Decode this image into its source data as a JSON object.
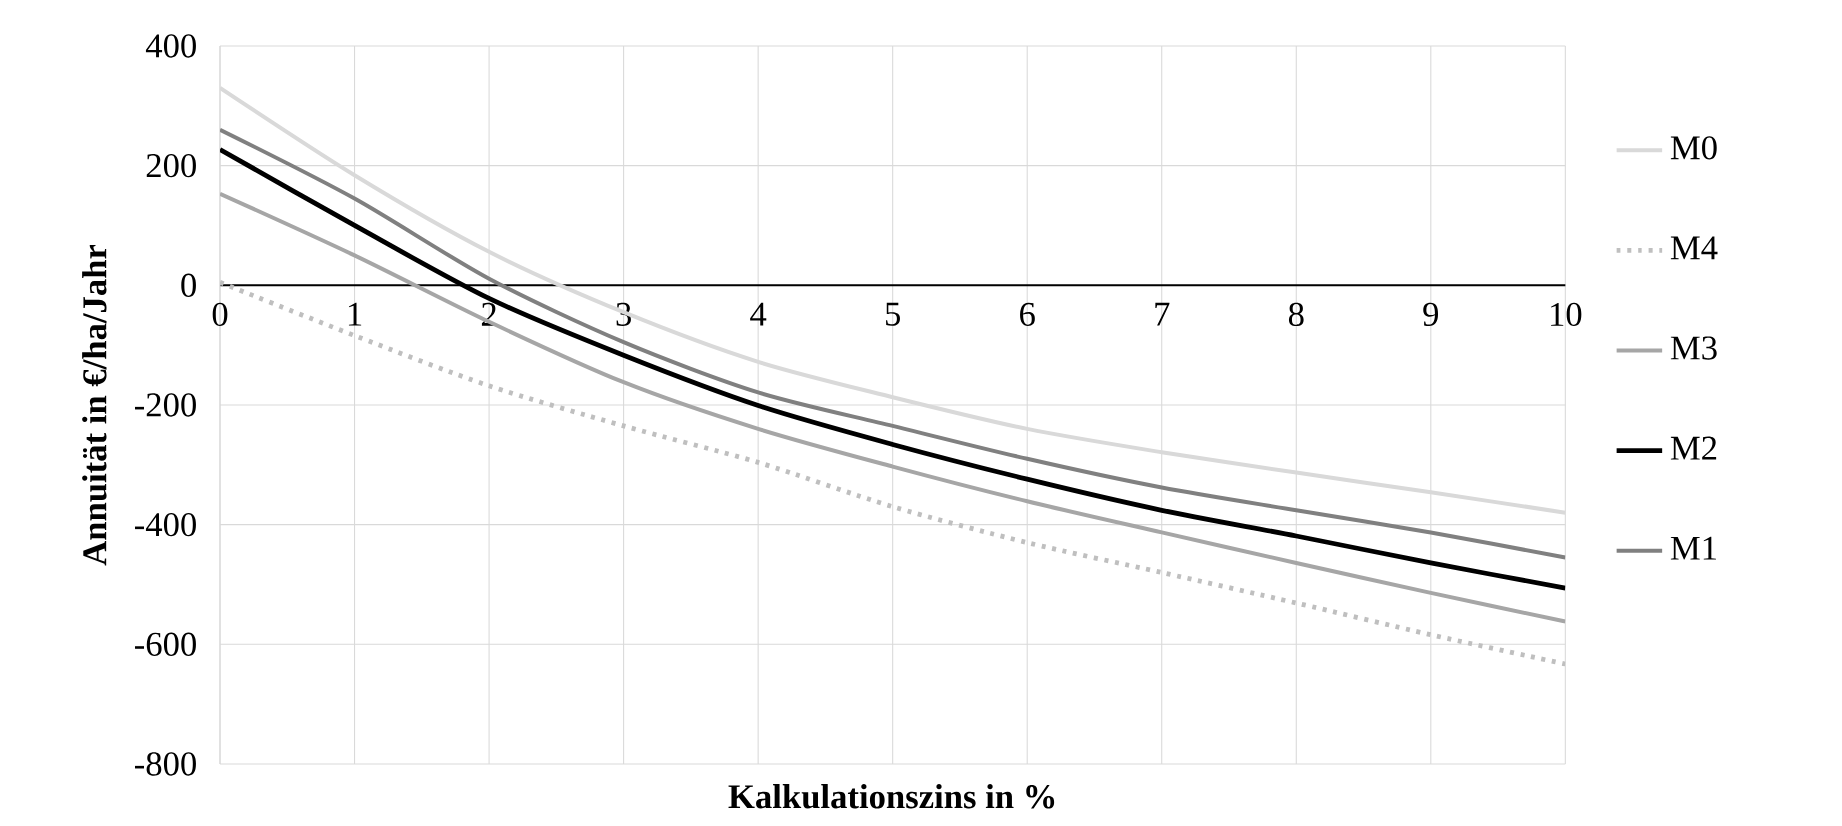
{
  "chart_data": {
    "type": "line",
    "xlabel": "Kalkulationszins in %",
    "ylabel": "Annuität in €/ha/Jahr",
    "x": [
      0,
      1,
      2,
      3,
      4,
      5,
      6,
      7,
      8,
      9,
      10
    ],
    "xlim": [
      0,
      10
    ],
    "ylim": [
      -800,
      400
    ],
    "xticks": [
      0,
      1,
      2,
      3,
      4,
      5,
      6,
      7,
      8,
      9,
      10
    ],
    "yticks": [
      -800,
      -600,
      -400,
      -200,
      0,
      200,
      400
    ],
    "grid": true,
    "legend": "right",
    "marker": "none",
    "series": [
      {
        "name": "M0",
        "color": "#d9d9d9",
        "line_style": "solid",
        "values": [
          330,
          184,
          56,
          -45,
          -128,
          -187,
          -240,
          -279,
          -313,
          -346,
          -380
        ]
      },
      {
        "name": "M4",
        "color": "#bfbfbf",
        "line_style": "dotted",
        "values": [
          5,
          -84,
          -168,
          -235,
          -296,
          -370,
          -430,
          -480,
          -531,
          -584,
          -633
        ]
      },
      {
        "name": "M3",
        "color": "#a6a6a6",
        "line_style": "solid",
        "values": [
          153,
          50,
          -61,
          -162,
          -240,
          -303,
          -361,
          -413,
          -464,
          -514,
          -562
        ]
      },
      {
        "name": "M2",
        "color": "#000000",
        "line_style": "solid",
        "values": [
          227,
          100,
          -22,
          -117,
          -201,
          -266,
          -324,
          -376,
          -419,
          -464,
          -506
        ]
      },
      {
        "name": "M1",
        "color": "#808080",
        "line_style": "solid",
        "values": [
          260,
          145,
          11,
          -95,
          -179,
          -235,
          -290,
          -338,
          -376,
          -413,
          -455
        ]
      }
    ]
  }
}
